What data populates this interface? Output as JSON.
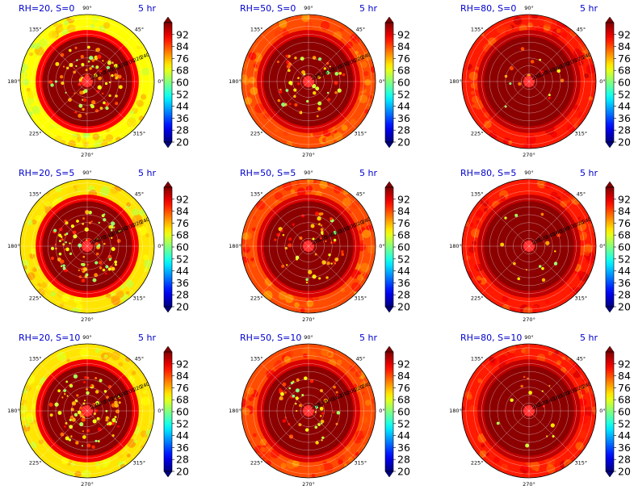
{
  "figure": {
    "background": "#ffffff"
  },
  "chart_data": {
    "type": "polar-heatmap",
    "grid": true,
    "colormap": "jet",
    "colorbar": {
      "ticks": [
        "92",
        "84",
        "76",
        "68",
        "60",
        "52",
        "44",
        "36",
        "28",
        "20"
      ],
      "range": [
        20,
        100
      ],
      "extend": "both"
    },
    "angle_tick_labels": [
      "0°",
      "45°",
      "90°",
      "135°",
      "180°",
      "225°",
      "270°",
      "315°"
    ],
    "radial_tick_labels": [
      "240",
      "220",
      "200",
      "180",
      "160",
      "140",
      "120",
      "100"
    ],
    "time_label": "5 hr",
    "title_color": "#0000cc",
    "panels": [
      {
        "title": "RH=20, S=0",
        "outer_value": 70,
        "middle_value": 90,
        "core_value": 99,
        "speckle_density": "high"
      },
      {
        "title": "RH=50, S=0",
        "outer_value": 84,
        "middle_value": 93,
        "core_value": 99,
        "speckle_density": "medium"
      },
      {
        "title": "RH=80, S=0",
        "outer_value": 88,
        "middle_value": 95,
        "core_value": 99,
        "speckle_density": "low"
      },
      {
        "title": "RH=20, S=5",
        "outer_value": 72,
        "middle_value": 91,
        "core_value": 99,
        "speckle_density": "high"
      },
      {
        "title": "RH=50, S=5",
        "outer_value": 84,
        "middle_value": 93,
        "core_value": 99,
        "speckle_density": "medium"
      },
      {
        "title": "RH=80, S=5",
        "outer_value": 88,
        "middle_value": 95,
        "core_value": 99,
        "speckle_density": "low"
      },
      {
        "title": "RH=20, S=10",
        "outer_value": 72,
        "middle_value": 91,
        "core_value": 99,
        "speckle_density": "high"
      },
      {
        "title": "RH=50, S=10",
        "outer_value": 84,
        "middle_value": 93,
        "core_value": 99,
        "speckle_density": "medium"
      },
      {
        "title": "RH=80, S=10",
        "outer_value": 88,
        "middle_value": 95,
        "core_value": 99,
        "speckle_density": "low"
      }
    ]
  }
}
